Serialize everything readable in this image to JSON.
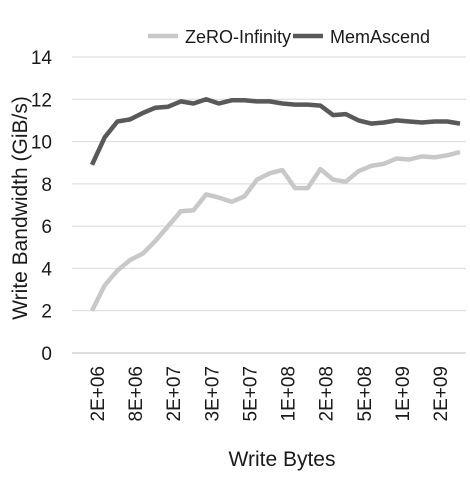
{
  "chart_data": {
    "type": "line",
    "title": "",
    "xlabel": "Write Bytes",
    "ylabel": "Write Bandwidth (GiB/s)",
    "ylim": [
      0,
      14
    ],
    "yticks": [
      "0",
      "2",
      "4",
      "6",
      "8",
      "10",
      "12",
      "14"
    ],
    "grid": "horizontal",
    "legend_position": "top",
    "x_tick_labels": [
      "2E+06",
      "8E+06",
      "2E+07",
      "3E+07",
      "5E+07",
      "1E+08",
      "2E+08",
      "5E+08",
      "1E+09",
      "2E+09"
    ],
    "series": [
      {
        "name": "ZeRO-Infinity",
        "color": "#c8c8c8",
        "values": [
          2.0,
          3.2,
          3.9,
          4.4,
          4.7,
          5.3,
          6.0,
          6.7,
          6.75,
          7.5,
          7.35,
          7.15,
          7.4,
          8.2,
          8.5,
          8.65,
          7.8,
          7.8,
          8.7,
          8.2,
          8.1,
          8.6,
          8.85,
          8.95,
          9.2,
          9.15,
          9.3,
          9.25,
          9.35,
          9.5
        ]
      },
      {
        "name": "MemAscend",
        "color": "#595959",
        "values": [
          8.9,
          10.2,
          10.95,
          11.05,
          11.35,
          11.6,
          11.65,
          11.9,
          11.8,
          12.0,
          11.8,
          11.95,
          11.95,
          11.9,
          11.9,
          11.8,
          11.75,
          11.75,
          11.7,
          11.25,
          11.3,
          11.0,
          10.85,
          10.9,
          11.0,
          10.95,
          10.9,
          10.95,
          10.95,
          10.85
        ]
      }
    ]
  }
}
